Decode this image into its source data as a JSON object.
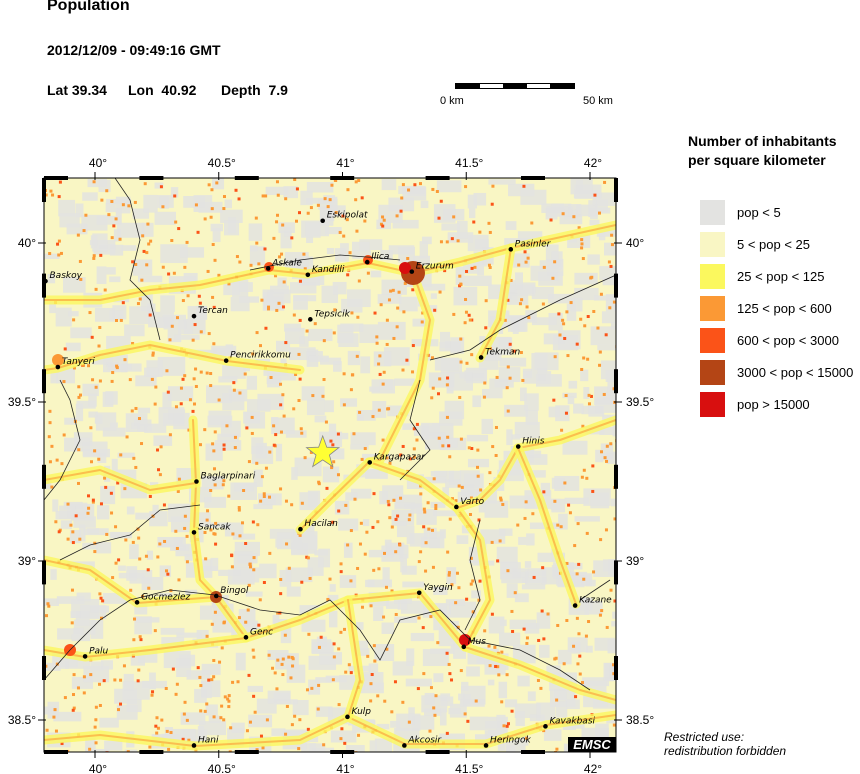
{
  "header": {
    "title": "Population",
    "datetime": "2012/12/09 - 09:49:16 GMT",
    "lat_label": "Lat 39.34",
    "lon_label": "Lon  40.92",
    "depth_label": "Depth  7.9"
  },
  "scale_bar": {
    "start_label": "0 km",
    "end_label": "50 km"
  },
  "axes": {
    "lon_ticks": [
      "40°",
      "40.5°",
      "41°",
      "41.5°",
      "42°"
    ],
    "lat_ticks": [
      "40°",
      "39.5°",
      "39°",
      "38.5°"
    ],
    "lon_range": [
      39.79,
      42.11
    ],
    "lat_range": [
      38.4,
      40.2
    ]
  },
  "epicenter": {
    "lat": 39.34,
    "lon": 40.92,
    "color": "#ffff33"
  },
  "towns": [
    {
      "name": "Eskipolat",
      "lon": 40.92,
      "lat": 40.07
    },
    {
      "name": "Askale",
      "lon": 40.7,
      "lat": 39.92
    },
    {
      "name": "Kandilli",
      "lon": 40.86,
      "lat": 39.9
    },
    {
      "name": "Ilica",
      "lon": 41.1,
      "lat": 39.94
    },
    {
      "name": "Erzurum",
      "lon": 41.28,
      "lat": 39.91
    },
    {
      "name": "Pasinler",
      "lon": 41.68,
      "lat": 39.98
    },
    {
      "name": "Baskoy",
      "lon": 39.8,
      "lat": 39.88
    },
    {
      "name": "Tercan",
      "lon": 40.4,
      "lat": 39.77
    },
    {
      "name": "Tepsicik",
      "lon": 40.87,
      "lat": 39.76
    },
    {
      "name": "Tanyeri",
      "lon": 39.85,
      "lat": 39.61
    },
    {
      "name": "Pencirikkomu",
      "lon": 40.53,
      "lat": 39.63
    },
    {
      "name": "Tekman",
      "lon": 41.56,
      "lat": 39.64
    },
    {
      "name": "Hinis",
      "lon": 41.71,
      "lat": 39.36
    },
    {
      "name": "Kargapazar",
      "lon": 41.11,
      "lat": 39.31
    },
    {
      "name": "Baglarpinari",
      "lon": 40.41,
      "lat": 39.25
    },
    {
      "name": "Varto",
      "lon": 41.46,
      "lat": 39.17
    },
    {
      "name": "Hacilan",
      "lon": 40.83,
      "lat": 39.1
    },
    {
      "name": "Sancak",
      "lon": 40.4,
      "lat": 39.09
    },
    {
      "name": "Yaygin",
      "lon": 41.31,
      "lat": 38.9
    },
    {
      "name": "Kazane",
      "lon": 41.94,
      "lat": 38.86
    },
    {
      "name": "Gocmezlez",
      "lon": 40.17,
      "lat": 38.87
    },
    {
      "name": "Bingol",
      "lon": 40.49,
      "lat": 38.89
    },
    {
      "name": "Genc",
      "lon": 40.61,
      "lat": 38.76
    },
    {
      "name": "Mus",
      "lon": 41.49,
      "lat": 38.73
    },
    {
      "name": "Palu",
      "lon": 39.96,
      "lat": 38.7
    },
    {
      "name": "Kulp",
      "lon": 41.02,
      "lat": 38.51
    },
    {
      "name": "Hani",
      "lon": 40.4,
      "lat": 38.42
    },
    {
      "name": "Akcosir",
      "lon": 41.25,
      "lat": 38.42
    },
    {
      "name": "Heringok",
      "lon": 41.58,
      "lat": 38.42
    },
    {
      "name": "Kavakbasi",
      "lon": 41.82,
      "lat": 38.48
    }
  ],
  "legend": {
    "title_line1": "Number of inhabitants",
    "title_line2": "per square kilometer",
    "items": [
      {
        "label": "pop < 5",
        "color": "#e3e3e1"
      },
      {
        "label": "5 < pop < 25",
        "color": "#f9f6c4"
      },
      {
        "label": "25 < pop < 125",
        "color": "#fbf85e"
      },
      {
        "label": "125 < pop < 600",
        "color": "#fb9935"
      },
      {
        "label": "600 < pop < 3000",
        "color": "#fb5318"
      },
      {
        "label": "3000 < pop < 15000",
        "color": "#b44515"
      },
      {
        "label": "pop > 15000",
        "color": "#d80f0f"
      }
    ]
  },
  "logo": "EMSC",
  "note_line1": "Restricted use:",
  "note_line2": "redistribution forbidden"
}
